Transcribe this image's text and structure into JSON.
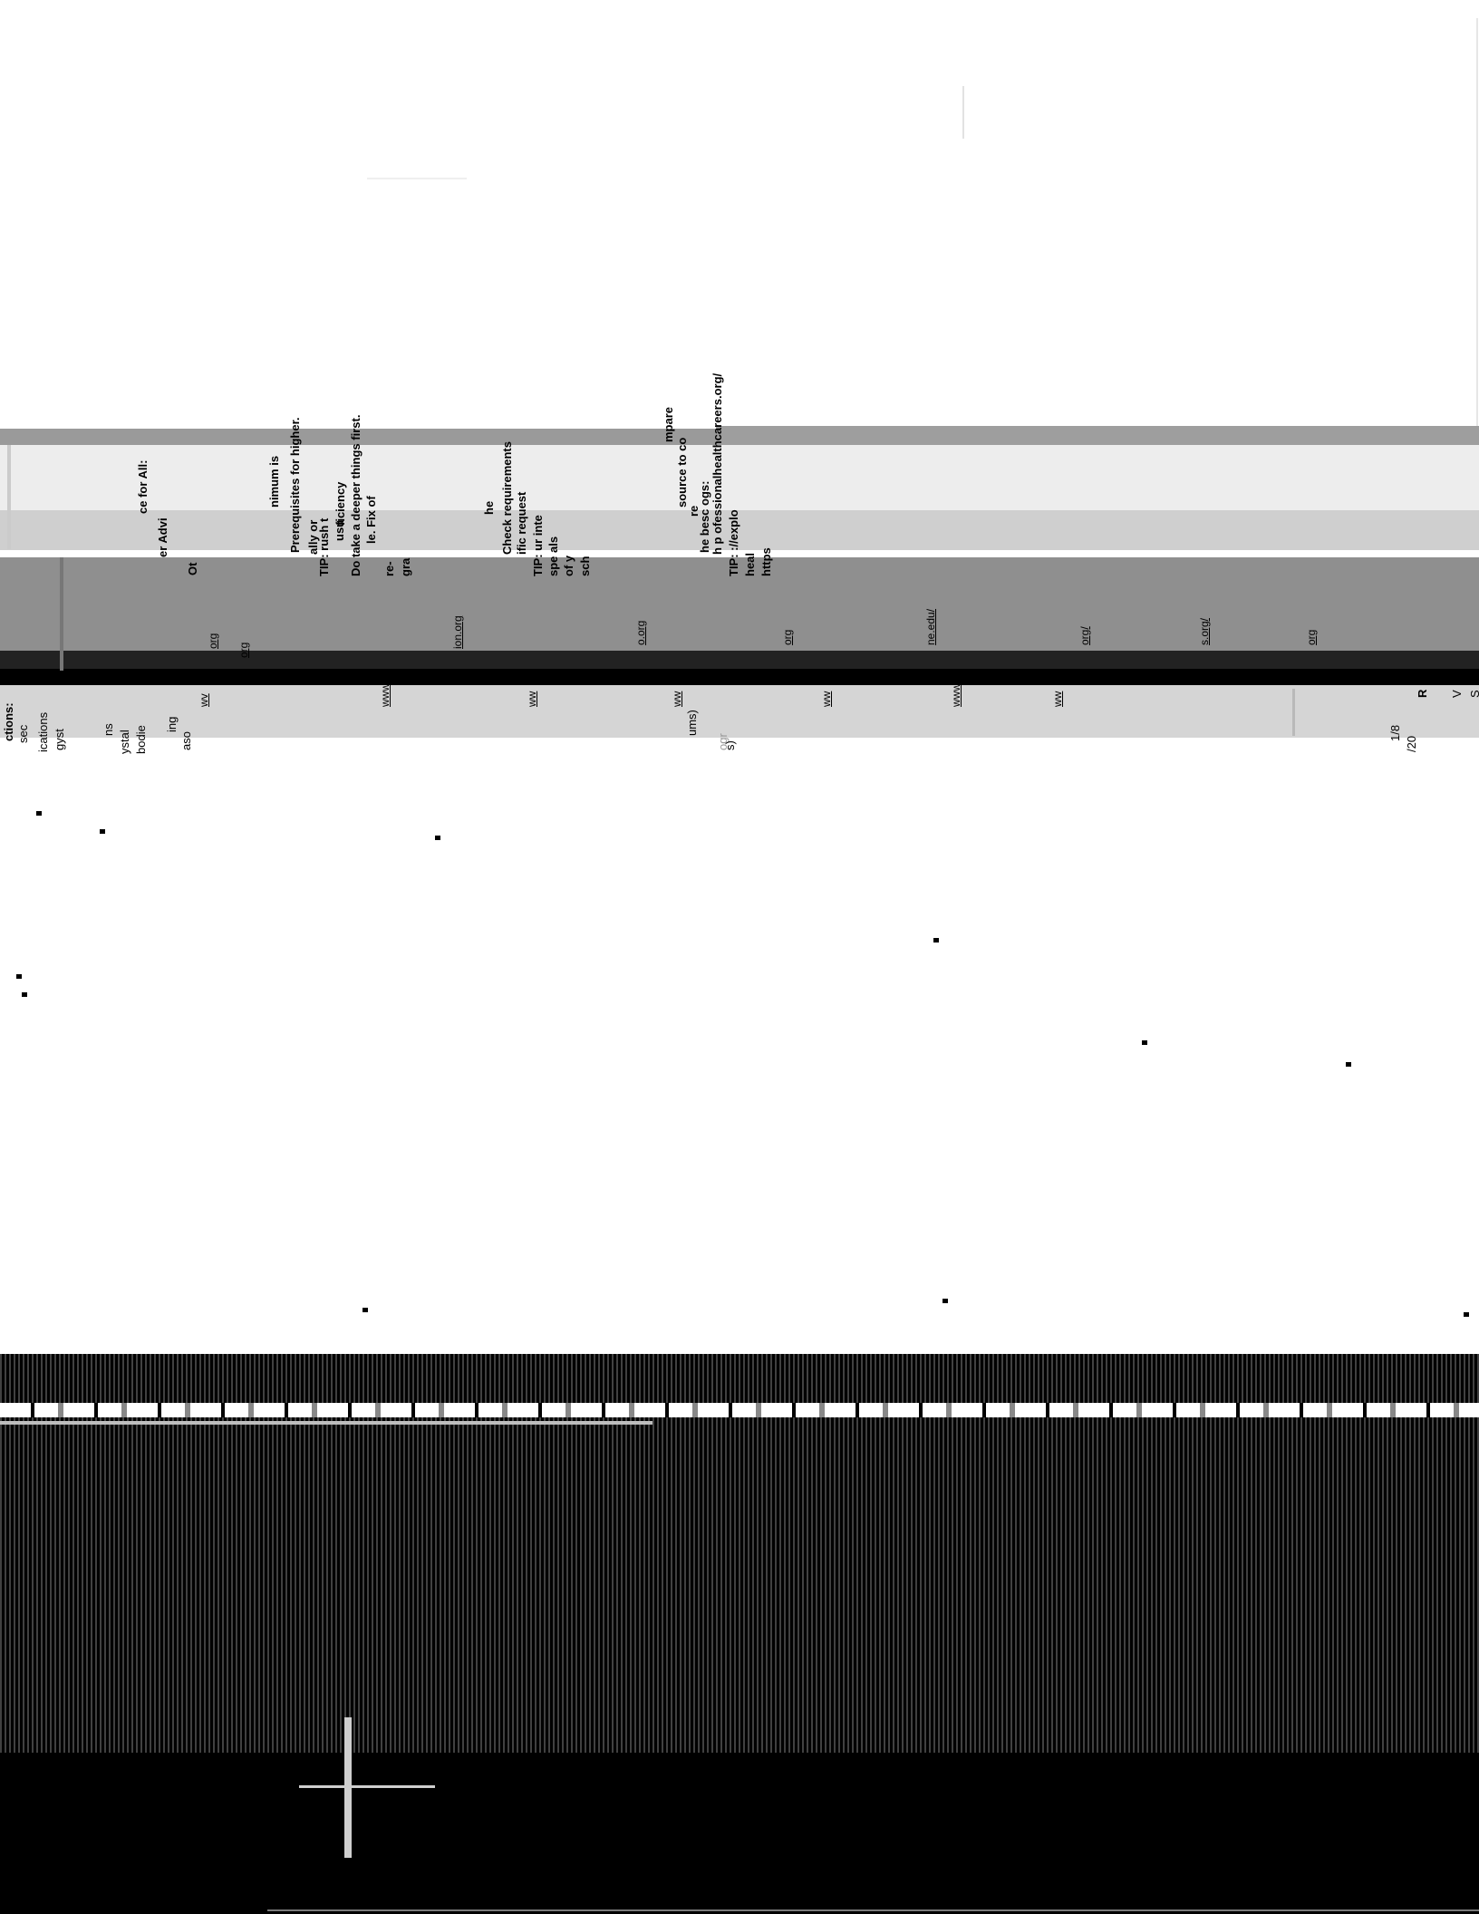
{
  "rotated_text": [
    {
      "id": "t1",
      "text": "ce for All:"
    },
    {
      "id": "t2",
      "text": "er Advi"
    },
    {
      "id": "t3",
      "text": "Ot"
    },
    {
      "id": "t4",
      "text": "nimum is"
    },
    {
      "id": "t5",
      "text": "Prerequisites for higher."
    },
    {
      "id": "t6",
      "text": "ally or"
    },
    {
      "id": "t7",
      "text": "TIP: rush t"
    },
    {
      "id": "t8",
      "text": "usu"
    },
    {
      "id": "t9",
      "text": "ficiency"
    },
    {
      "id": "t10",
      "text": "Do take a deeper things first."
    },
    {
      "id": "t11",
      "text": "le. Fix of"
    },
    {
      "id": "t12",
      "text": "re-"
    },
    {
      "id": "t13",
      "text": "gra"
    },
    {
      "id": "t14",
      "text": "he"
    },
    {
      "id": "t15",
      "text": "Check requirements"
    },
    {
      "id": "t16",
      "text": "ific request"
    },
    {
      "id": "t17",
      "text": "TIP: ur inte"
    },
    {
      "id": "t18",
      "text": "spe als"
    },
    {
      "id": "t19",
      "text": "of y"
    },
    {
      "id": "t20",
      "text": "sch"
    },
    {
      "id": "t21",
      "text": "mpare"
    },
    {
      "id": "t22",
      "text": "source to co"
    },
    {
      "id": "t23",
      "text": "re"
    },
    {
      "id": "t24",
      "text": "he besc ogs:"
    },
    {
      "id": "t25",
      "text": "h p ofessionalhealthcareers.org/"
    },
    {
      "id": "t26",
      "text": "TIP: ://explo"
    },
    {
      "id": "t27",
      "text": "heal"
    },
    {
      "id": "t28",
      "text": "https"
    }
  ],
  "url_row": [
    "org",
    "ion.org",
    "o.org",
    "org",
    "org",
    "ne.edu/",
    "org/",
    "s.org/",
    "org"
  ],
  "www_row": [
    "wv",
    "www",
    "ww",
    "ww",
    "ww",
    "www",
    "ww"
  ],
  "left_lower_text": [
    "ctions:",
    "sec",
    "ications",
    "gyst",
    "ns",
    "ystal",
    "bodie",
    "ing",
    "aso"
  ],
  "mid_lower_text": [
    "ums)",
    "ogr",
    "s)"
  ],
  "right_lower_text": [
    "R",
    "V",
    "S",
    "1/8",
    "/20"
  ]
}
